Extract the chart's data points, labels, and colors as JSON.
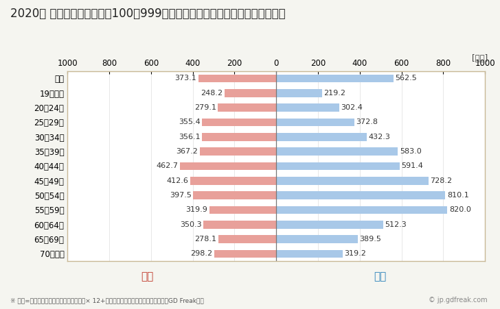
{
  "title": "2020年 民間企業（従業者数100～999人）フルタイム労働者の男女別平均年収",
  "ylabel_unit": "[万円]",
  "categories": [
    "全体",
    "19歳以下",
    "20～24歳",
    "25～29歳",
    "30～34歳",
    "35～39歳",
    "40～44歳",
    "45～49歳",
    "50～54歳",
    "55～59歳",
    "60～64歳",
    "65～69歳",
    "70歳以上"
  ],
  "female_values": [
    373.1,
    248.2,
    279.1,
    355.4,
    356.1,
    367.2,
    462.7,
    412.6,
    397.5,
    319.9,
    350.3,
    278.1,
    298.2
  ],
  "male_values": [
    562.5,
    219.2,
    302.4,
    372.8,
    432.3,
    583.0,
    591.4,
    728.2,
    810.1,
    820.0,
    512.3,
    389.5,
    319.2
  ],
  "female_color": "#e8a09a",
  "male_color": "#a8c8e8",
  "female_label": "女性",
  "male_label": "男性",
  "female_label_color": "#c0392b",
  "male_label_color": "#2980b9",
  "xlim": 1000,
  "background_color": "#f5f5f0",
  "plot_bg_color": "#ffffff",
  "border_color": "#c8b896",
  "footnote": "※ 年収=「きまって支給する現金給与額」× 12+「年間賞与その他特別給与額」としてGD Freak推計",
  "watermark": "© jp.gdfreak.com",
  "title_fontsize": 12,
  "tick_fontsize": 8.5,
  "label_fontsize": 8,
  "bar_height": 0.55
}
